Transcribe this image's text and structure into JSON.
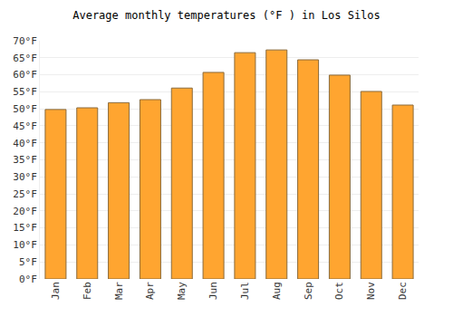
{
  "chart_data": {
    "type": "bar",
    "title": "Average monthly temperatures (°F ) in Los Silos",
    "categories": [
      "Jan",
      "Feb",
      "Mar",
      "Apr",
      "May",
      "Jun",
      "Jul",
      "Aug",
      "Sep",
      "Oct",
      "Nov",
      "Dec"
    ],
    "values": [
      49.8,
      50.3,
      51.8,
      52.7,
      56.1,
      60.7,
      66.5,
      67.3,
      64.4,
      59.9,
      55.1,
      51.1
    ],
    "color": "#ffa530",
    "ylim": [
      0,
      70
    ],
    "yticks": [
      {
        "value": 0,
        "label": "0°F"
      },
      {
        "value": 5,
        "label": "5°F"
      },
      {
        "value": 10,
        "label": "10°F"
      },
      {
        "value": 15,
        "label": "15°F"
      },
      {
        "value": 20,
        "label": "20°F"
      },
      {
        "value": 25,
        "label": "25°F"
      },
      {
        "value": 30,
        "label": "30°F"
      },
      {
        "value": 35,
        "label": "35°F"
      },
      {
        "value": 40,
        "label": "40°F"
      },
      {
        "value": 45,
        "label": "45°F"
      },
      {
        "value": 50,
        "label": "50°F"
      },
      {
        "value": 55,
        "label": "55°F"
      },
      {
        "value": 60,
        "label": "60°F"
      },
      {
        "value": 65,
        "label": "65°F"
      },
      {
        "value": 70,
        "label": "70°F"
      }
    ],
    "grid": true
  }
}
